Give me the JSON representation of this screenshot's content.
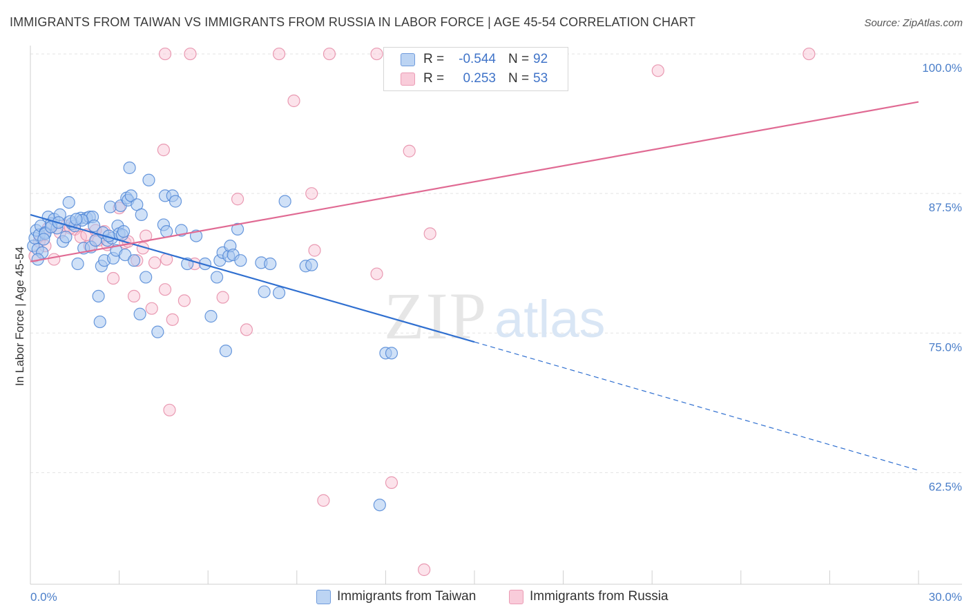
{
  "title": "IMMIGRANTS FROM TAIWAN VS IMMIGRANTS FROM RUSSIA IN LABOR FORCE | AGE 45-54 CORRELATION CHART",
  "source": "Source: ZipAtlas.com",
  "watermark": {
    "zip": "ZIP",
    "atlas": "atlas"
  },
  "colors": {
    "taiwan_fill": "#a9c8f0",
    "taiwan_stroke": "#4f86d6",
    "taiwan_line": "#2f6fd0",
    "russia_fill": "#f8c2d2",
    "russia_stroke": "#e58aa6",
    "russia_line": "#e06a93",
    "tick_label": "#4a7ec9",
    "grid": "#e3e3e3"
  },
  "legend": {
    "rows": [
      {
        "r_label": "R =",
        "r_value": "-0.544",
        "n_label": "N =",
        "n_value": "92",
        "series": "taiwan"
      },
      {
        "r_label": "R =",
        "r_value": "0.253",
        "n_label": "N =",
        "n_value": "53",
        "series": "russia"
      }
    ]
  },
  "chart_data": {
    "type": "scatter",
    "title": "IMMIGRANTS FROM TAIWAN VS IMMIGRANTS FROM RUSSIA IN LABOR FORCE | AGE 45-54 CORRELATION CHART",
    "xlabel": "",
    "ylabel": "In Labor Force | Age 45-54",
    "xlim": [
      0,
      30
    ],
    "ylim": [
      52.5,
      100.5
    ],
    "x_tick_labels": [
      "0.0%",
      "30.0%"
    ],
    "y_ticks": [
      62.5,
      75.0,
      87.5,
      100.0
    ],
    "y_tick_labels": [
      "62.5%",
      "75.0%",
      "87.5%",
      "100.0%"
    ],
    "grid": "horizontal dashed",
    "legend_position": "top-center",
    "series": [
      {
        "name": "Immigrants from Taiwan",
        "key": "taiwan",
        "r": -0.544,
        "n": 92,
        "trend": {
          "x0": 0.0,
          "y0": 85.6,
          "x1": 15.0,
          "y1": 74.2,
          "dash_x1": 30.0,
          "dash_y1": 62.7
        },
        "points": [
          [
            0.1,
            82.8
          ],
          [
            0.15,
            83.5
          ],
          [
            0.2,
            84.2
          ],
          [
            0.25,
            82.5
          ],
          [
            0.3,
            83.8
          ],
          [
            0.35,
            84.6
          ],
          [
            0.4,
            82.2
          ],
          [
            0.5,
            84.0
          ],
          [
            0.6,
            85.4
          ],
          [
            0.7,
            84.8
          ],
          [
            0.8,
            85.2
          ],
          [
            0.9,
            84.4
          ],
          [
            1.0,
            85.6
          ],
          [
            1.1,
            83.2
          ],
          [
            1.2,
            83.6
          ],
          [
            1.3,
            86.7
          ],
          [
            1.4,
            84.8
          ],
          [
            1.5,
            84.6
          ],
          [
            1.6,
            81.2
          ],
          [
            1.7,
            85.3
          ],
          [
            1.8,
            82.6
          ],
          [
            1.9,
            85.3
          ],
          [
            2.0,
            85.4
          ],
          [
            2.05,
            82.7
          ],
          [
            2.1,
            85.4
          ],
          [
            2.2,
            83.3
          ],
          [
            2.3,
            78.3
          ],
          [
            2.35,
            76.0
          ],
          [
            2.4,
            81.0
          ],
          [
            2.5,
            81.5
          ],
          [
            2.6,
            83.3
          ],
          [
            2.7,
            86.3
          ],
          [
            2.75,
            83.5
          ],
          [
            2.8,
            81.7
          ],
          [
            2.9,
            82.4
          ],
          [
            2.95,
            84.6
          ],
          [
            3.0,
            83.9
          ],
          [
            3.05,
            86.4
          ],
          [
            3.1,
            83.8
          ],
          [
            3.2,
            82.0
          ],
          [
            3.25,
            87.1
          ],
          [
            3.3,
            86.9
          ],
          [
            3.35,
            89.8
          ],
          [
            3.4,
            87.3
          ],
          [
            3.5,
            81.5
          ],
          [
            3.6,
            86.5
          ],
          [
            3.7,
            76.7
          ],
          [
            3.75,
            85.6
          ],
          [
            3.9,
            80.0
          ],
          [
            4.0,
            88.7
          ],
          [
            4.3,
            75.1
          ],
          [
            4.5,
            84.7
          ],
          [
            4.55,
            87.3
          ],
          [
            4.6,
            84.1
          ],
          [
            4.8,
            87.3
          ],
          [
            4.9,
            86.8
          ],
          [
            5.1,
            84.2
          ],
          [
            5.3,
            81.2
          ],
          [
            5.6,
            83.7
          ],
          [
            5.9,
            81.2
          ],
          [
            6.1,
            76.5
          ],
          [
            6.3,
            80.0
          ],
          [
            6.4,
            81.5
          ],
          [
            6.5,
            82.2
          ],
          [
            6.6,
            73.4
          ],
          [
            6.7,
            81.9
          ],
          [
            6.75,
            82.8
          ],
          [
            6.85,
            82.0
          ],
          [
            7.0,
            84.3
          ],
          [
            7.1,
            81.5
          ],
          [
            7.8,
            81.3
          ],
          [
            7.9,
            78.7
          ],
          [
            8.1,
            81.2
          ],
          [
            8.4,
            78.6
          ],
          [
            8.6,
            86.8
          ],
          [
            9.3,
            81.0
          ],
          [
            9.5,
            81.1
          ],
          [
            12.0,
            73.2
          ],
          [
            12.2,
            73.2
          ],
          [
            11.8,
            59.6
          ],
          [
            0.5,
            83.9
          ],
          [
            0.7,
            84.5
          ],
          [
            1.35,
            85.0
          ],
          [
            1.75,
            85.1
          ],
          [
            2.15,
            84.6
          ],
          [
            2.45,
            84.0
          ],
          [
            1.55,
            85.2
          ],
          [
            0.95,
            84.9
          ],
          [
            0.45,
            83.4
          ],
          [
            0.25,
            81.6
          ],
          [
            3.15,
            84.1
          ],
          [
            2.65,
            83.7
          ]
        ]
      },
      {
        "name": "Immigrants from Russia",
        "key": "russia",
        "r": 0.253,
        "n": 53,
        "trend": {
          "x0": 0.0,
          "y0": 81.4,
          "x1": 30.0,
          "y1": 95.7
        },
        "points": [
          [
            4.55,
            100
          ],
          [
            5.4,
            100
          ],
          [
            8.4,
            100
          ],
          [
            10.1,
            100
          ],
          [
            11.7,
            100
          ],
          [
            14.0,
            100
          ],
          [
            26.3,
            100
          ],
          [
            21.2,
            98.5
          ],
          [
            8.9,
            95.8
          ],
          [
            4.5,
            91.4
          ],
          [
            12.8,
            91.3
          ],
          [
            7.0,
            87.0
          ],
          [
            9.5,
            87.5
          ],
          [
            13.5,
            83.9
          ],
          [
            0.3,
            83.2
          ],
          [
            0.5,
            82.8
          ],
          [
            0.8,
            81.6
          ],
          [
            1.0,
            84.0
          ],
          [
            1.2,
            84.6
          ],
          [
            1.5,
            84.3
          ],
          [
            1.7,
            83.6
          ],
          [
            2.0,
            82.8
          ],
          [
            2.3,
            83.3
          ],
          [
            2.5,
            84.1
          ],
          [
            2.8,
            79.9
          ],
          [
            3.0,
            86.2
          ],
          [
            3.2,
            83.1
          ],
          [
            3.5,
            78.3
          ],
          [
            3.6,
            81.5
          ],
          [
            3.9,
            83.7
          ],
          [
            4.1,
            77.2
          ],
          [
            4.2,
            81.3
          ],
          [
            4.55,
            78.9
          ],
          [
            4.6,
            81.6
          ],
          [
            4.8,
            76.2
          ],
          [
            5.2,
            77.9
          ],
          [
            5.55,
            81.2
          ],
          [
            6.5,
            78.2
          ],
          [
            7.3,
            75.3
          ],
          [
            9.6,
            82.4
          ],
          [
            11.7,
            80.3
          ],
          [
            4.7,
            68.1
          ],
          [
            12.2,
            61.6
          ],
          [
            9.9,
            60.0
          ],
          [
            13.3,
            53.8
          ],
          [
            3.3,
            83.2
          ],
          [
            2.6,
            82.9
          ],
          [
            1.9,
            83.8
          ],
          [
            0.15,
            81.9
          ],
          [
            3.8,
            82.6
          ],
          [
            1.35,
            84.4
          ],
          [
            2.2,
            84.2
          ],
          [
            0.6,
            84.4
          ]
        ]
      }
    ]
  },
  "bottom_legend": [
    {
      "label": "Immigrants from Taiwan",
      "series": "taiwan"
    },
    {
      "label": "Immigrants from Russia",
      "series": "russia"
    }
  ]
}
